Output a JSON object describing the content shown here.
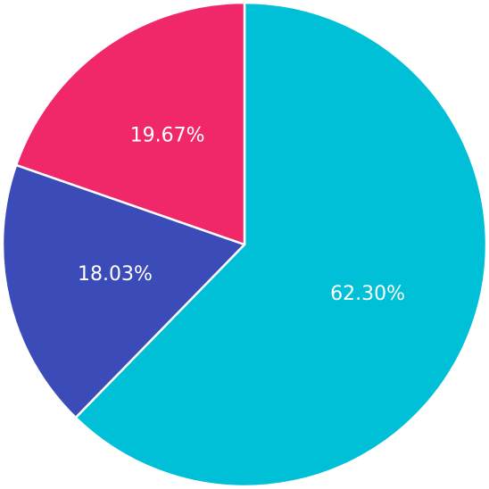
{
  "chart_data": {
    "type": "pie",
    "values": [
      62.3,
      18.03,
      19.67
    ],
    "value_labels": [
      "62.30%",
      "18.03%",
      "19.67%"
    ],
    "colors": [
      "#00c0d8",
      "#3b4cb8",
      "#f0286a"
    ]
  }
}
